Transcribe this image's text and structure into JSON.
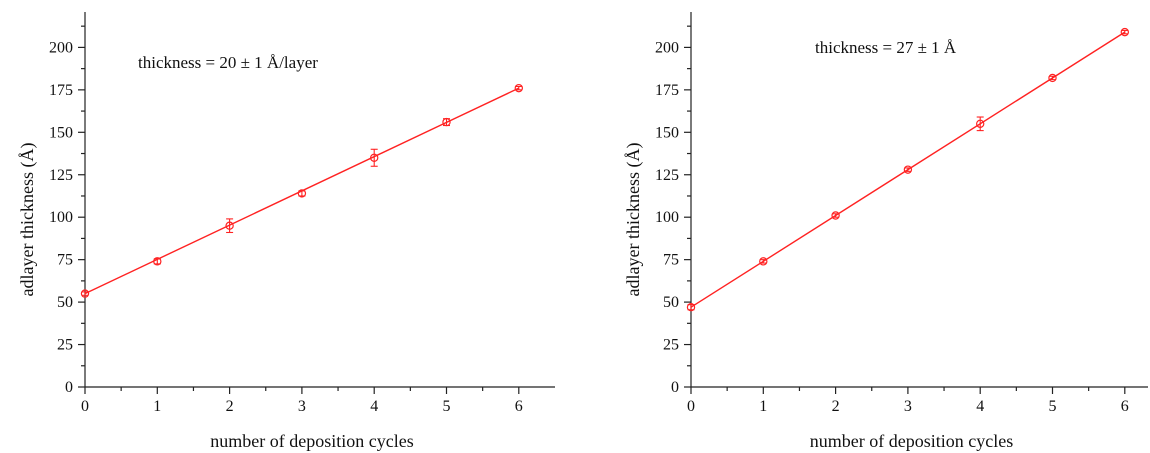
{
  "chart_data": [
    {
      "type": "scatter",
      "xlabel": "number of deposition cycles",
      "ylabel": "adlayer thickness (Å)",
      "annotation": "thickness = 20 ± 1 Å/layer",
      "xlim": [
        0,
        6.5
      ],
      "ylim": [
        0,
        220
      ],
      "xticks": [
        "0",
        "1",
        "2",
        "3",
        "4",
        "5",
        "6"
      ],
      "yticks": [
        "0",
        "25",
        "50",
        "75",
        "100",
        "125",
        "150",
        "175",
        "200"
      ],
      "grid": false,
      "color": "#ff2222",
      "series": [
        {
          "x": [
            0,
            1,
            2,
            3,
            4,
            5,
            6
          ],
          "y": [
            55,
            74,
            95,
            114,
            135,
            156,
            176
          ],
          "yerr": [
            1,
            1.5,
            4,
            1.5,
            5,
            2,
            1
          ]
        }
      ],
      "fit": {
        "x": [
          0,
          6
        ],
        "y": [
          55,
          176
        ]
      }
    },
    {
      "type": "scatter",
      "xlabel": "number of deposition cycles",
      "ylabel": "adlayer thickness (Å)",
      "annotation": "thickness = 27 ± 1 Å",
      "xlim": [
        0,
        6.5
      ],
      "ylim": [
        0,
        220
      ],
      "xticks": [
        "0",
        "1",
        "2",
        "3",
        "4",
        "5",
        "6"
      ],
      "yticks": [
        "0",
        "25",
        "50",
        "75",
        "100",
        "125",
        "150",
        "175",
        "200"
      ],
      "grid": false,
      "color": "#ff2222",
      "series": [
        {
          "x": [
            0,
            1,
            2,
            3,
            4,
            5,
            6
          ],
          "y": [
            47,
            74,
            101,
            128,
            155,
            182,
            209
          ],
          "yerr": [
            1.5,
            1,
            1,
            1,
            4,
            1,
            1
          ]
        }
      ],
      "fit": {
        "x": [
          0,
          6
        ],
        "y": [
          47,
          209
        ]
      }
    }
  ]
}
